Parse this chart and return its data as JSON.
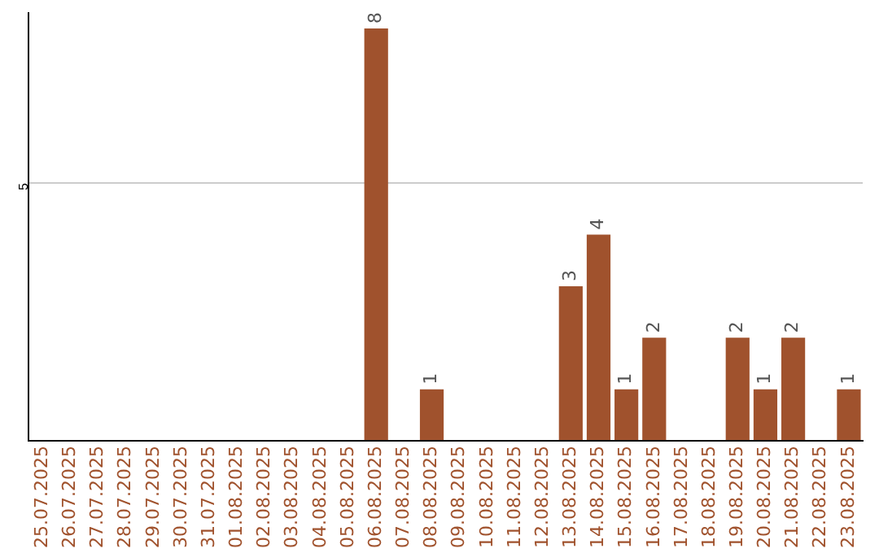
{
  "chart_data": {
    "type": "bar",
    "categories": [
      "25.07.2025",
      "26.07.2025",
      "27.07.2025",
      "28.07.2025",
      "29.07.2025",
      "30.07.2025",
      "31.07.2025",
      "01.08.2025",
      "02.08.2025",
      "03.08.2025",
      "04.08.2025",
      "05.08.2025",
      "06.08.2025",
      "07.08.2025",
      "08.08.2025",
      "09.08.2025",
      "10.08.2025",
      "11.08.2025",
      "12.08.2025",
      "13.08.2025",
      "14.08.2025",
      "15.08.2025",
      "16.08.2025",
      "17.08.2025",
      "18.08.2025",
      "19.08.2025",
      "20.08.2025",
      "21.08.2025",
      "22.08.2025",
      "23.08.2025"
    ],
    "values": [
      null,
      null,
      null,
      null,
      null,
      null,
      null,
      null,
      null,
      null,
      null,
      null,
      8,
      null,
      1,
      null,
      null,
      null,
      null,
      3,
      4,
      1,
      2,
      null,
      null,
      2,
      1,
      2,
      null,
      1
    ],
    "data_labels": true,
    "color": "#a0522d",
    "ylim": [
      0,
      8.3
    ],
    "yticks": [
      {
        "value": 0,
        "label": null
      },
      5
    ],
    "grid": "y"
  }
}
